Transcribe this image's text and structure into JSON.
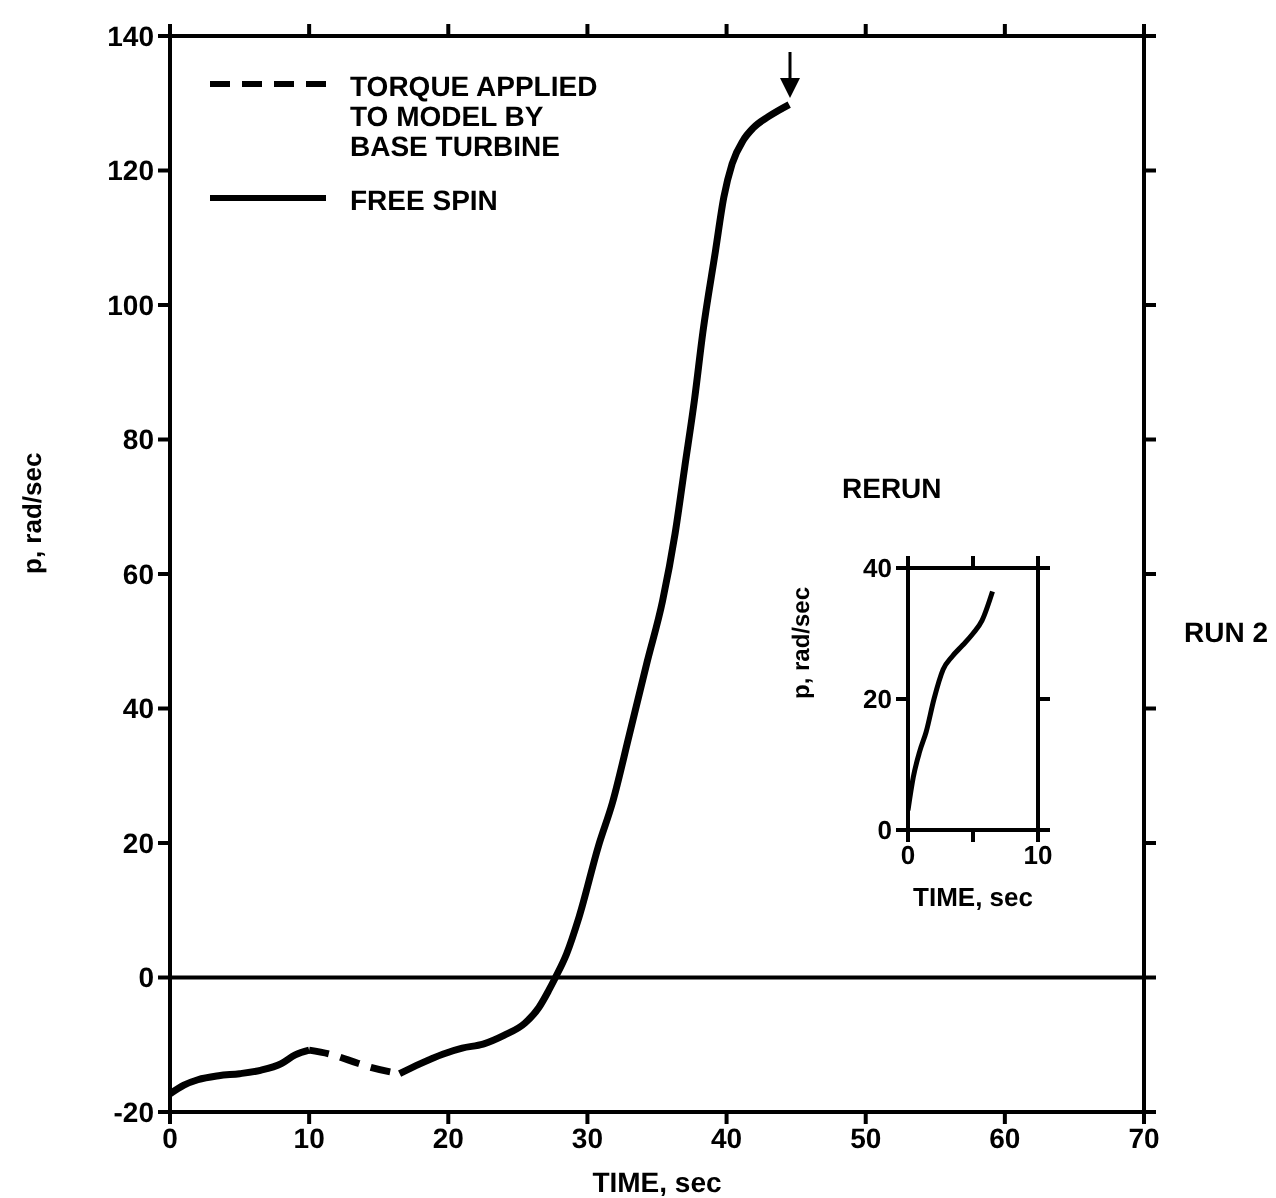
{
  "chart_data": [
    {
      "type": "line",
      "xlabel": "TIME, sec",
      "ylabel": "p,  rad/sec",
      "xlim": [
        0,
        70
      ],
      "xticks": [
        0,
        10,
        20,
        30,
        40,
        50,
        60,
        70
      ],
      "ylim": [
        -20,
        140
      ],
      "yticks": [
        -20,
        0,
        20,
        40,
        60,
        80,
        100,
        120,
        140
      ],
      "legend": "top left",
      "marker": "none",
      "ref_lines": [
        {
          "axis": "y",
          "value": 0,
          "color": "#000000"
        }
      ],
      "annotations": [
        "RUN 2"
      ],
      "series": [
        {
          "name": "TORQUE APPLIED TO MODEL BY BASE TURBINE",
          "color": "#000000",
          "line_style": "dashed",
          "x": [
            10,
            11.5,
            13,
            14.5,
            16.5
          ],
          "values": [
            -10.8,
            -11.4,
            -12.4,
            -13.4,
            -14.3
          ]
        },
        {
          "name": "FREE SPIN",
          "color": "#000000",
          "line_style": "solid",
          "x": [
            0,
            1,
            2,
            3.5,
            5,
            6.5,
            8,
            9,
            10,
            13,
            16.5,
            18,
            19.6,
            21,
            22.5,
            24,
            25.5,
            26.5,
            27.2,
            27.7,
            28.5,
            29.4,
            30.8,
            31.8,
            33,
            34.3,
            35.4,
            36.3,
            37,
            37.7,
            38.3,
            39.2,
            39.8,
            40.4,
            41.2,
            41.9,
            43,
            44.5
          ],
          "values": [
            -17.3,
            -16,
            -15.2,
            -14.6,
            -14.3,
            -13.8,
            -12.8,
            -11.5,
            -10.8,
            null,
            -14.3,
            -12.8,
            -11.4,
            -10.5,
            -9.9,
            -8.6,
            -6.8,
            -4.5,
            -2,
            0,
            3.5,
            9,
            19.6,
            26,
            36,
            47,
            56,
            66,
            76,
            86,
            96,
            108,
            116,
            121,
            124.5,
            126.3,
            128,
            129.8
          ]
        }
      ]
    },
    {
      "type": "line",
      "title": "RERUN",
      "xlabel": "TIME, sec",
      "ylabel": "p, rad/sec",
      "xlim": [
        0,
        10
      ],
      "xticks": [
        0,
        {
          "value": 5,
          "label": null
        },
        10
      ],
      "ylim": [
        0,
        40
      ],
      "yticks": [
        0,
        20,
        40
      ],
      "marker": "none",
      "series": [
        {
          "color": "#000000",
          "line_style": "solid",
          "x": [
            0,
            0.4,
            0.9,
            1.4,
            2,
            2.7,
            3.4,
            4.2,
            5,
            5.7,
            6.5
          ],
          "values": [
            3,
            8,
            12,
            15,
            20,
            24.5,
            26.5,
            28.2,
            30,
            32,
            36.4
          ]
        }
      ]
    }
  ]
}
